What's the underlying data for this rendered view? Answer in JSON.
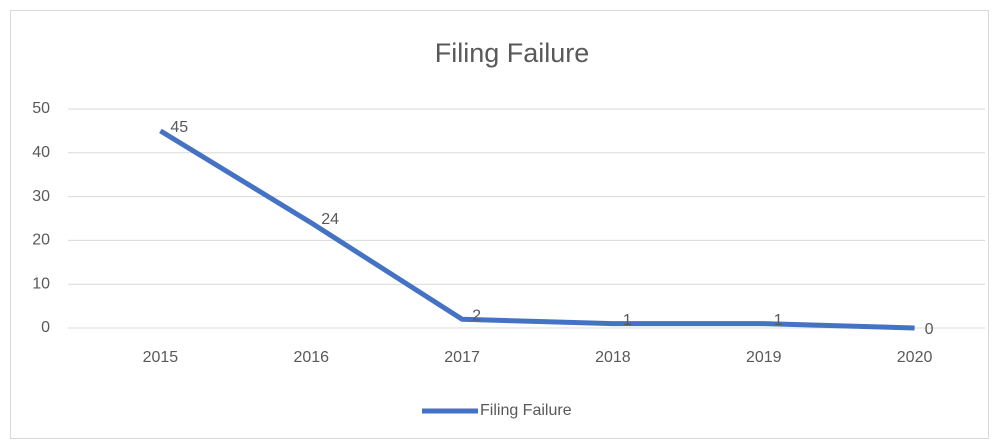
{
  "chart_data": {
    "type": "line",
    "title": "Filing Failure",
    "categories": [
      "2015",
      "2016",
      "2017",
      "2018",
      "2019",
      "2020"
    ],
    "series": [
      {
        "name": "Filing Failure",
        "color": "#4472c4",
        "values": [
          45,
          24,
          2,
          1,
          1,
          0
        ]
      }
    ],
    "ylim": [
      0,
      50
    ],
    "yticks": [
      0,
      10,
      20,
      30,
      40,
      50
    ],
    "grid": true,
    "legend": "bottom"
  }
}
